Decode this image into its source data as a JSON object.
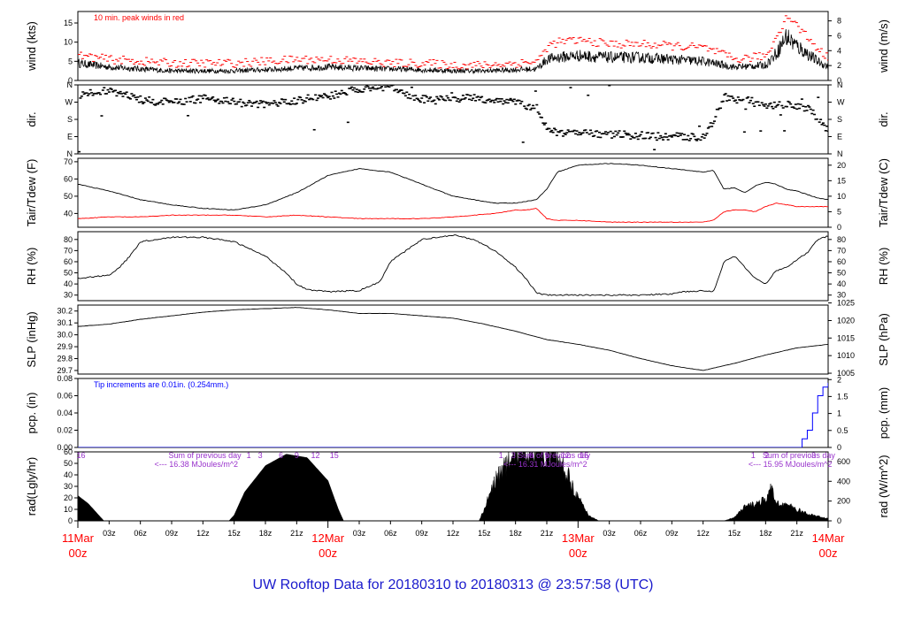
{
  "title": "UW Rooftop Data for 20180310  to  20180313 @ 23:57:58  (UTC)",
  "colors": {
    "title": "#1a1acc",
    "peak": "#ff0000",
    "dew": "#ff0000",
    "precip": "#0000ff",
    "notes": "#9933cc",
    "days": "#ff0000"
  },
  "panels": [
    {
      "id": "wind",
      "ylabel": "wind (kts)",
      "ylabel2": "wind (m/s)",
      "ylim": [
        0,
        18
      ],
      "yticks": [
        "0",
        "5",
        "10",
        "15"
      ],
      "ytick_vals": [
        0,
        5,
        10,
        15
      ],
      "y2ticks": [
        "0",
        "2",
        "4",
        "6",
        "8"
      ],
      "y2tick_vals": [
        0,
        3.89,
        7.78,
        11.66,
        15.55
      ],
      "note": "10 min. peak winds in red"
    },
    {
      "id": "dir",
      "ylabel": "dir.",
      "ylabel2": "dir.",
      "ylim": [
        0,
        360
      ],
      "yticks": [
        "N",
        "E",
        "S",
        "W",
        "N"
      ],
      "ytick_vals": [
        0,
        90,
        180,
        270,
        360
      ],
      "y2ticks": [
        "N",
        "E",
        "S",
        "W",
        "N"
      ],
      "y2tick_vals": [
        0,
        90,
        180,
        270,
        360
      ]
    },
    {
      "id": "temp",
      "ylabel": "Tair/Tdew (F)",
      "ylabel2": "Tair/Tdew (C)",
      "ylim": [
        32,
        72
      ],
      "yticks": [
        "40",
        "50",
        "60",
        "70"
      ],
      "ytick_vals": [
        40,
        50,
        60,
        70
      ],
      "y2ticks": [
        "0",
        "5",
        "10",
        "15",
        "20"
      ],
      "y2tick_vals": [
        32,
        41,
        50,
        59,
        68
      ]
    },
    {
      "id": "rh",
      "ylabel": "RH (%)",
      "ylabel2": "RH (%)",
      "ylim": [
        25,
        87
      ],
      "yticks": [
        "30",
        "40",
        "50",
        "60",
        "70",
        "80"
      ],
      "ytick_vals": [
        30,
        40,
        50,
        60,
        70,
        80
      ],
      "y2ticks": [
        "30",
        "40",
        "50",
        "60",
        "70",
        "80"
      ],
      "y2tick_vals": [
        30,
        40,
        50,
        60,
        70,
        80
      ]
    },
    {
      "id": "slp",
      "ylabel": "SLP (inHg)",
      "ylabel2": "SLP (hPa)",
      "ylim": [
        29.67,
        30.25
      ],
      "yticks": [
        "29.7",
        "29.8",
        "29.9",
        "30.0",
        "30.1",
        "30.2"
      ],
      "ytick_vals": [
        29.7,
        29.8,
        29.9,
        30.0,
        30.1,
        30.2
      ],
      "y2ticks": [
        "1005",
        "1010",
        "1015",
        "1020",
        "1025"
      ],
      "y2tick_vals": [
        29.677,
        29.825,
        29.973,
        30.12,
        30.268
      ]
    },
    {
      "id": "pcp",
      "ylabel": "pcp. (in)",
      "ylabel2": "pcp. (mm)",
      "ylim": [
        0,
        0.08
      ],
      "yticks": [
        "0.00",
        "0.02",
        "0.04",
        "0.06",
        "0.08"
      ],
      "ytick_vals": [
        0,
        0.02,
        0.04,
        0.06,
        0.08
      ],
      "y2ticks": [
        "0",
        "0.5",
        "1",
        "1.5",
        "2"
      ],
      "y2tick_vals": [
        0,
        0.0197,
        0.0394,
        0.0591,
        0.0787
      ],
      "note": "Tip increments are 0.01in. (0.254mm.)"
    },
    {
      "id": "rad",
      "ylabel": "rad(Lgly/hr)",
      "ylabel2": "rad (W/m^2)",
      "ylim": [
        0,
        60
      ],
      "yticks": [
        "0",
        "10",
        "20",
        "30",
        "40",
        "50",
        "60"
      ],
      "ytick_vals": [
        0,
        10,
        20,
        30,
        40,
        50,
        60
      ],
      "y2ticks": [
        "0",
        "200",
        "400",
        "600"
      ],
      "y2tick_vals": [
        0,
        17.2,
        34.4,
        51.6
      ]
    }
  ],
  "rad_notes": [
    {
      "hour": 6.5,
      "line1": "Sum of previous day",
      "line2": "<--- 16.38 MJoules/m^2"
    },
    {
      "hour": 40,
      "line1": "Sum of previous day",
      "line2": "<--- 16.31 MJoules/m^2"
    },
    {
      "hour": 63.5,
      "line1": "Sum of previous day",
      "line2": "<--- 15.95 MJoules/m^2"
    }
  ],
  "rad_hour_labels": [
    {
      "hour": 0.3,
      "text": "16"
    },
    {
      "hour": 16.4,
      "text": "1"
    },
    {
      "hour": 17.5,
      "text": "3"
    },
    {
      "hour": 19.5,
      "text": "6"
    },
    {
      "hour": 21,
      "text": "9"
    },
    {
      "hour": 22.8,
      "text": "12"
    },
    {
      "hour": 24.6,
      "text": "15"
    },
    {
      "hour": 40.6,
      "text": "1"
    },
    {
      "hour": 41.8,
      "text": "3"
    },
    {
      "hour": 43.5,
      "text": "6"
    },
    {
      "hour": 45,
      "text": "9"
    },
    {
      "hour": 46.8,
      "text": "12"
    },
    {
      "hour": 48.6,
      "text": "15"
    },
    {
      "hour": 64.8,
      "text": "1"
    },
    {
      "hour": 66.1,
      "text": "2"
    },
    {
      "hour": 70.6,
      "text": "3"
    }
  ],
  "x_axis": {
    "range_hours": [
      0,
      72
    ],
    "hour_ticks": [
      {
        "h": 3,
        "label": "03z"
      },
      {
        "h": 6,
        "label": "06z"
      },
      {
        "h": 9,
        "label": "09z"
      },
      {
        "h": 12,
        "label": "12z"
      },
      {
        "h": 15,
        "label": "15z"
      },
      {
        "h": 18,
        "label": "18z"
      },
      {
        "h": 21,
        "label": "21z"
      },
      {
        "h": 27,
        "label": "03z"
      },
      {
        "h": 30,
        "label": "06z"
      },
      {
        "h": 33,
        "label": "09z"
      },
      {
        "h": 36,
        "label": "12z"
      },
      {
        "h": 39,
        "label": "15z"
      },
      {
        "h": 42,
        "label": "18z"
      },
      {
        "h": 45,
        "label": "21z"
      },
      {
        "h": 51,
        "label": "03z"
      },
      {
        "h": 54,
        "label": "06z"
      },
      {
        "h": 57,
        "label": "09z"
      },
      {
        "h": 60,
        "label": "12z"
      },
      {
        "h": 63,
        "label": "15z"
      },
      {
        "h": 66,
        "label": "18z"
      },
      {
        "h": 69,
        "label": "21z"
      }
    ],
    "day_ticks": [
      {
        "h": 0,
        "day": "11Mar",
        "time": "00z"
      },
      {
        "h": 24,
        "day": "12Mar",
        "time": "00z"
      },
      {
        "h": 48,
        "day": "13Mar",
        "time": "00z"
      },
      {
        "h": 72,
        "day": "14Mar",
        "time": "00z"
      }
    ]
  },
  "chart_data": {
    "type": "line",
    "x_unit": "hours since 11Mar 00z",
    "series": [
      {
        "name": "wind",
        "panel": "wind",
        "x": [
          0,
          3,
          6,
          9,
          12,
          15,
          18,
          21,
          24,
          27,
          30,
          33,
          36,
          39,
          42,
          44,
          45,
          46,
          48,
          51,
          54,
          57,
          60,
          63,
          66,
          67,
          68,
          69,
          70,
          71,
          72
        ],
        "values": [
          4.5,
          3.5,
          3,
          2.5,
          2.5,
          2.5,
          2.8,
          3.2,
          3.5,
          3.2,
          3,
          2.8,
          2.5,
          2.5,
          2.8,
          3,
          5.5,
          6,
          6.5,
          6,
          6,
          5.5,
          5,
          3.5,
          4,
          7,
          11.5,
          9,
          7,
          5,
          3.5
        ]
      },
      {
        "name": "10 min. peak winds in red",
        "panel": "wind",
        "x": [
          0,
          3,
          6,
          9,
          12,
          15,
          18,
          21,
          24,
          27,
          30,
          33,
          36,
          39,
          42,
          44,
          45,
          46,
          48,
          51,
          54,
          57,
          60,
          63,
          66,
          67,
          68,
          69,
          70,
          71,
          72
        ],
        "values": [
          6.5,
          5.5,
          5,
          4.5,
          4.5,
          4.5,
          5,
          5.5,
          5.5,
          5,
          4.5,
          4.5,
          4,
          4,
          4.5,
          5,
          9,
          10,
          10.5,
          9.5,
          9.5,
          9,
          8.5,
          5.5,
          6.5,
          12,
          17,
          14,
          11,
          8,
          5.5
        ]
      },
      {
        "name": "dir",
        "panel": "dir",
        "x": [
          0,
          2,
          4,
          6,
          8,
          10,
          12,
          14,
          16,
          18,
          20,
          22,
          24,
          26,
          28,
          30,
          32,
          34,
          36,
          38,
          40,
          42,
          43,
          44,
          45,
          46,
          48,
          50,
          52,
          54,
          56,
          58,
          60,
          62,
          63,
          64,
          65,
          66,
          68,
          70,
          72
        ],
        "values": [
          300,
          330,
          320,
          280,
          270,
          275,
          290,
          280,
          260,
          260,
          270,
          290,
          300,
          330,
          350,
          350,
          290,
          280,
          290,
          290,
          280,
          270,
          250,
          240,
          120,
          110,
          110,
          105,
          100,
          95,
          90,
          90,
          85,
          300,
          280,
          290,
          260,
          250,
          255,
          240,
          110
        ]
      },
      {
        "name": "Tair",
        "panel": "temp",
        "x": [
          0,
          3,
          6,
          9,
          12,
          15,
          18,
          21,
          24,
          27,
          30,
          33,
          36,
          38,
          39,
          40,
          42,
          44,
          45,
          46,
          48,
          51,
          54,
          57,
          60,
          61,
          62,
          63,
          64,
          65,
          66,
          67,
          68,
          69,
          70,
          71,
          72
        ],
        "values": [
          57,
          53,
          48,
          45,
          43,
          42,
          45,
          52,
          62,
          66,
          64,
          57,
          50,
          48,
          47,
          46,
          46,
          48,
          54,
          64,
          68,
          69,
          68,
          66,
          64,
          65,
          54,
          55,
          52,
          56,
          58,
          57,
          54,
          53,
          51,
          49,
          48
        ]
      },
      {
        "name": "Tdew",
        "panel": "temp",
        "x": [
          0,
          3,
          6,
          9,
          12,
          15,
          18,
          21,
          24,
          27,
          30,
          33,
          36,
          38,
          40,
          42,
          43,
          44,
          45,
          46,
          48,
          51,
          54,
          57,
          60,
          61,
          62,
          63,
          64,
          65,
          66,
          67,
          68,
          69,
          70,
          71,
          72
        ],
        "values": [
          37,
          38,
          38,
          39,
          39,
          39,
          38,
          39,
          38,
          37,
          37,
          37,
          38,
          39,
          40,
          42,
          42,
          43,
          37,
          36,
          36,
          35,
          35,
          35,
          35,
          36,
          41,
          42,
          42,
          41,
          44,
          46,
          45,
          44,
          44,
          44,
          44
        ]
      },
      {
        "name": "RH",
        "panel": "rh",
        "x": [
          0,
          3,
          4,
          5,
          6,
          9,
          12,
          15,
          18,
          20,
          21,
          22,
          24,
          27,
          28,
          29,
          30,
          33,
          36,
          38,
          40,
          42,
          43,
          44,
          45,
          46,
          48,
          51,
          54,
          57,
          58,
          60,
          61,
          62,
          63,
          64,
          65,
          66,
          67,
          68,
          69,
          70,
          71,
          72
        ],
        "values": [
          45,
          48,
          55,
          65,
          78,
          82,
          82,
          78,
          65,
          50,
          40,
          35,
          33,
          34,
          38,
          42,
          60,
          80,
          84,
          80,
          70,
          55,
          45,
          32,
          30,
          30,
          30,
          30,
          30,
          31,
          33,
          34,
          33,
          60,
          65,
          55,
          45,
          40,
          52,
          55,
          62,
          68,
          80,
          83
        ]
      },
      {
        "name": "SLP",
        "panel": "slp",
        "x": [
          0,
          3,
          6,
          9,
          12,
          15,
          18,
          21,
          24,
          27,
          30,
          33,
          36,
          39,
          42,
          45,
          48,
          51,
          54,
          57,
          60,
          63,
          66,
          69,
          72
        ],
        "values": [
          30.07,
          30.09,
          30.13,
          30.16,
          30.19,
          30.21,
          30.22,
          30.23,
          30.21,
          30.18,
          30.18,
          30.16,
          30.14,
          30.09,
          30.03,
          29.96,
          29.92,
          29.87,
          29.8,
          29.74,
          29.7,
          29.76,
          29.83,
          29.89,
          29.92
        ]
      },
      {
        "name": "pcp",
        "panel": "pcp",
        "x": [
          0,
          69,
          69.5,
          70,
          70.5,
          71,
          71.5,
          72
        ],
        "values": [
          0,
          0,
          0.01,
          0.02,
          0.04,
          0.06,
          0.07,
          0.075
        ]
      },
      {
        "name": "rad",
        "panel": "rad",
        "x": [
          0,
          1,
          2,
          2.5,
          14.5,
          15,
          16,
          18,
          20,
          22,
          24,
          25,
          25.5,
          38.5,
          39,
          40,
          42,
          44,
          46,
          47,
          48,
          49,
          50,
          62,
          63,
          64,
          66,
          66.5,
          67,
          68,
          70,
          72
        ],
        "values": [
          22,
          15,
          5,
          0,
          0,
          5,
          25,
          48,
          58,
          55,
          35,
          10,
          0,
          0,
          10,
          35,
          58,
          64,
          55,
          40,
          20,
          5,
          0,
          0,
          3,
          12,
          18,
          28,
          16,
          14,
          6,
          2
        ]
      }
    ]
  }
}
